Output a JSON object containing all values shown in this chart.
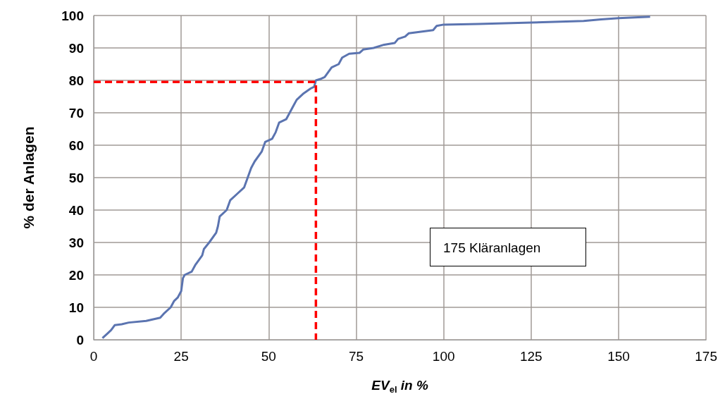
{
  "chart_data": {
    "type": "line",
    "xlabel": "EV$_{el}$ in %",
    "ylabel": "% der Anlagen",
    "xlim": [
      0,
      175
    ],
    "xticks": [
      0,
      25,
      50,
      75,
      100,
      125,
      150,
      175
    ],
    "ylim": [
      0,
      100
    ],
    "yticks": [
      0,
      10,
      20,
      30,
      40,
      50,
      60,
      70,
      80,
      90,
      100
    ],
    "grid": true,
    "marker": "none",
    "annotations": [
      "175 Kläranlagen"
    ],
    "series": [
      {
        "color": "#5b74b0",
        "line_style": "solid",
        "x": [
          2.5,
          4,
          5,
          6,
          8,
          10,
          15,
          19,
          20,
          22,
          23,
          24,
          25,
          25.5,
          26,
          28,
          29,
          31,
          31.5,
          33,
          35,
          35.5,
          36,
          38,
          39,
          41,
          43,
          44,
          45,
          46,
          48,
          49,
          51,
          52,
          53,
          55,
          56,
          57,
          58,
          60,
          62,
          63,
          63.5,
          65,
          66,
          68,
          70,
          71,
          73,
          76,
          77,
          80,
          83,
          86,
          87,
          89,
          90,
          97,
          98,
          100,
          110,
          125,
          140,
          145,
          150,
          159
        ],
        "values": [
          0.5,
          2,
          3,
          4.5,
          4.8,
          5.3,
          5.8,
          6.8,
          8,
          10,
          12,
          13,
          15,
          19,
          20,
          21,
          23,
          26,
          28,
          30,
          33,
          35,
          38,
          40,
          43,
          45,
          47,
          50,
          53,
          55,
          58,
          61,
          62,
          64,
          67,
          68,
          70,
          72,
          74,
          76,
          77.5,
          78,
          80,
          80.5,
          81,
          84,
          85,
          87,
          88.2,
          88.5,
          89.5,
          90,
          91,
          91.5,
          92.8,
          93.5,
          94.5,
          95.5,
          96.8,
          97.2,
          97.4,
          97.8,
          98.3,
          98.8,
          99.2,
          99.6
        ]
      },
      {
        "color": "#ff0000",
        "line_style": "dashed",
        "x": [
          0,
          63.5,
          63.5
        ],
        "values": [
          79.5,
          79.5,
          0
        ]
      }
    ]
  }
}
